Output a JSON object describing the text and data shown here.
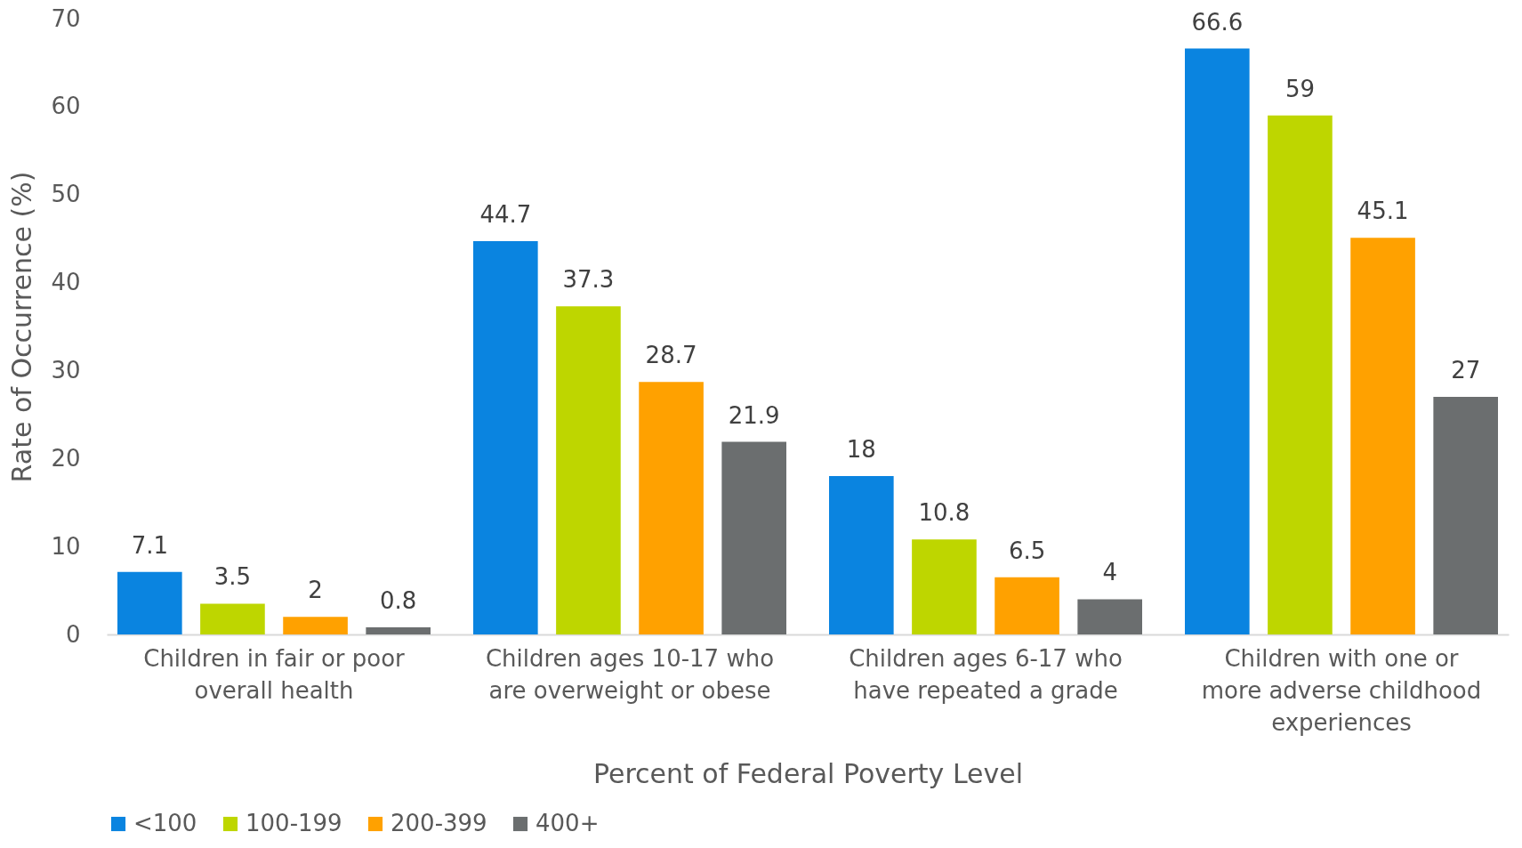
{
  "chart_data": {
    "type": "bar",
    "xlabel": "Percent of Federal Poverty Level",
    "ylabel": "Rate of Occurrence (%)",
    "categories": [
      "Children in fair or poor overall health",
      "Children ages 10-17 who are overweight or obese",
      "Children ages 6-17 who have repeated a grade",
      "Children with one or more adverse childhood experiences"
    ],
    "series": [
      {
        "name": "<100",
        "color": "#0a84e0",
        "values": [
          7.1,
          44.7,
          18,
          66.6
        ]
      },
      {
        "name": "100-199",
        "color": "#bed600",
        "values": [
          3.5,
          37.3,
          10.8,
          59
        ]
      },
      {
        "name": "200-399",
        "color": "#ffa100",
        "values": [
          2,
          28.7,
          6.5,
          45.1
        ]
      },
      {
        "name": "400+",
        "color": "#6b6e6f",
        "values": [
          0.8,
          21.9,
          4,
          27
        ]
      }
    ],
    "ylim": [
      0,
      70
    ],
    "yticks": [
      0,
      10,
      20,
      30,
      40,
      50,
      60,
      70
    ],
    "grid": false,
    "legend": "bottom",
    "data_labels": true
  }
}
